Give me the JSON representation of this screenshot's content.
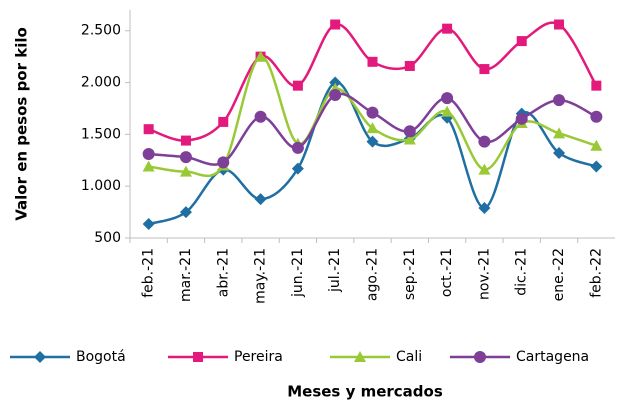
{
  "chart_data": {
    "type": "line",
    "y_label": "Valor en pesos por kilo",
    "x_label": "Meses  y mercados",
    "categories": [
      "feb.-21",
      "mar.-21",
      "abr.-21",
      "may.-21",
      "jun.-21",
      "jul.-21",
      "ago.-21",
      "sep.-21",
      "oct.-21",
      "nov.-21",
      "dic.-21",
      "ene.-22",
      "feb.-22"
    ],
    "series": [
      {
        "name": "Bogotá",
        "color": "#1f6fa3",
        "marker": "diamond",
        "values": [
          635,
          750,
          1160,
          875,
          1170,
          2000,
          1430,
          1460,
          1660,
          790,
          1700,
          1320,
          1190
        ]
      },
      {
        "name": "Pereira",
        "color": "#e3197b",
        "marker": "square",
        "values": [
          1550,
          1440,
          1620,
          2250,
          1970,
          2560,
          2200,
          2160,
          2520,
          2130,
          2400,
          2560,
          1970
        ]
      },
      {
        "name": "Cali",
        "color": "#99c935",
        "marker": "triangle",
        "values": [
          1190,
          1140,
          1200,
          2250,
          1410,
          1940,
          1560,
          1450,
          1720,
          1160,
          1610,
          1510,
          1390
        ]
      },
      {
        "name": "Cartagena",
        "color": "#7e3f98",
        "marker": "circle",
        "values": [
          1310,
          1280,
          1230,
          1670,
          1370,
          1880,
          1710,
          1530,
          1850,
          1430,
          1650,
          1830,
          1670
        ]
      }
    ],
    "ylim": [
      500,
      2700
    ],
    "yticks": [
      {
        "value": 2500,
        "label": "2.500"
      },
      {
        "value": 2000,
        "label": "2.000"
      },
      {
        "value": 1500,
        "label": "1.500"
      },
      {
        "value": 1000,
        "label": "1.000"
      },
      500
    ],
    "grid": false,
    "legend": "bottom"
  }
}
